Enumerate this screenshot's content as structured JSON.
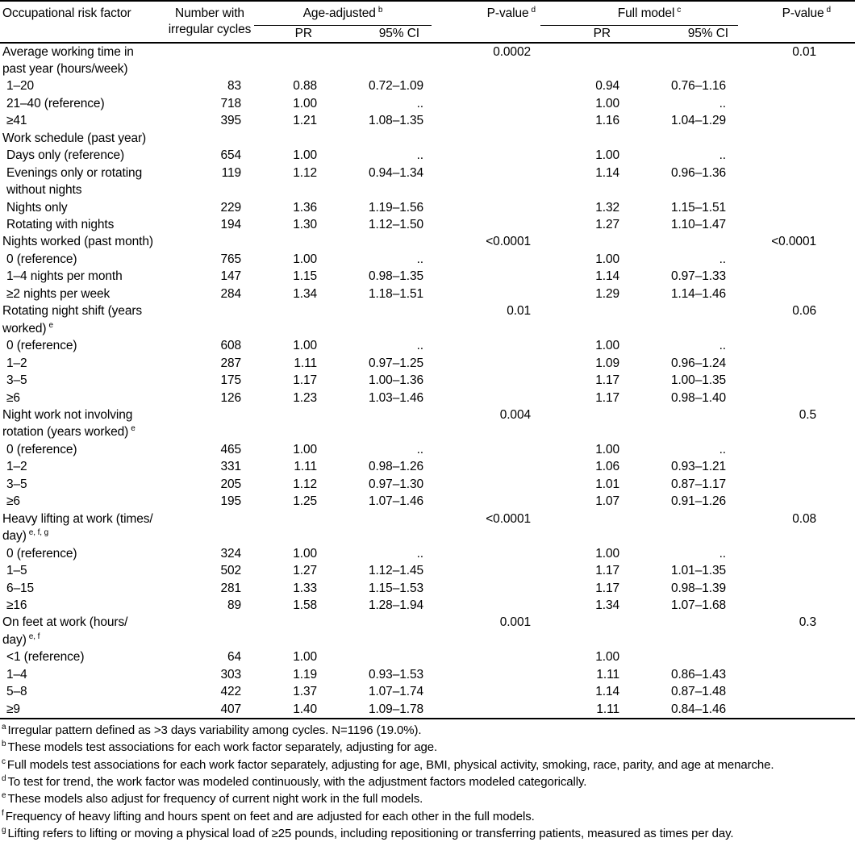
{
  "table": {
    "header": {
      "factor": "Occupational risk factor",
      "n": "Number with\nirregular cycles",
      "age_group": "Age-adjusted",
      "age_sup": "b",
      "full_group": "Full model",
      "full_sup": "c",
      "pr": "PR",
      "ci": "95% CI",
      "p": "P-value",
      "p_sup": "d"
    },
    "sections": [
      {
        "label": "Average working time in\npast year (hours/week)",
        "sup": "",
        "p_age": "0.0002",
        "p_full": "0.01",
        "rows": [
          {
            "label": "1–20",
            "n": "83",
            "pr1": "0.88",
            "ci1": "0.72–1.09",
            "pr2": "0.94",
            "ci2": "0.76–1.16"
          },
          {
            "label": "21–40 (reference)",
            "n": "718",
            "pr1": "1.00",
            "ci1": "..",
            "pr2": "1.00",
            "ci2": ".."
          },
          {
            "label": "≥41",
            "n": "395",
            "pr1": "1.21",
            "ci1": "1.08–1.35",
            "pr2": "1.16",
            "ci2": "1.04–1.29"
          }
        ]
      },
      {
        "label": "Work schedule (past year)",
        "sup": "",
        "p_age": "",
        "p_full": "",
        "rows": [
          {
            "label": "Days only (reference)",
            "n": "654",
            "pr1": "1.00",
            "ci1": "..",
            "pr2": "1.00",
            "ci2": ".."
          },
          {
            "label": "Evenings only or rotating\nwithout nights",
            "n": "119",
            "pr1": "1.12",
            "ci1": "0.94–1.34",
            "pr2": "1.14",
            "ci2": "0.96–1.36"
          },
          {
            "label": "Nights only",
            "n": "229",
            "pr1": "1.36",
            "ci1": "1.19–1.56",
            "pr2": "1.32",
            "ci2": "1.15–1.51"
          },
          {
            "label": "Rotating with nights",
            "n": "194",
            "pr1": "1.30",
            "ci1": "1.12–1.50",
            "pr2": "1.27",
            "ci2": "1.10–1.47"
          }
        ]
      },
      {
        "label": "Nights worked (past month)",
        "sup": "",
        "p_age": "<0.0001",
        "p_full": "<0.0001",
        "rows": [
          {
            "label": "0 (reference)",
            "n": "765",
            "pr1": "1.00",
            "ci1": "..",
            "pr2": "1.00",
            "ci2": ".."
          },
          {
            "label": "1–4 nights per month",
            "n": "147",
            "pr1": "1.15",
            "ci1": "0.98–1.35",
            "pr2": "1.14",
            "ci2": "0.97–1.33"
          },
          {
            "label": "≥2 nights per week",
            "n": "284",
            "pr1": "1.34",
            "ci1": "1.18–1.51",
            "pr2": "1.29",
            "ci2": "1.14–1.46"
          }
        ]
      },
      {
        "label": "Rotating night shift (years\nworked)",
        "sup": "e",
        "p_age": "0.01",
        "p_full": "0.06",
        "rows": [
          {
            "label": "0 (reference)",
            "n": "608",
            "pr1": "1.00",
            "ci1": "..",
            "pr2": "1.00",
            "ci2": ".."
          },
          {
            "label": "1–2",
            "n": "287",
            "pr1": "1.11",
            "ci1": "0.97–1.25",
            "pr2": "1.09",
            "ci2": "0.96–1.24"
          },
          {
            "label": "3–5",
            "n": "175",
            "pr1": "1.17",
            "ci1": "1.00–1.36",
            "pr2": "1.17",
            "ci2": "1.00–1.35"
          },
          {
            "label": "≥6",
            "n": "126",
            "pr1": "1.23",
            "ci1": "1.03–1.46",
            "pr2": "1.17",
            "ci2": "0.98–1.40"
          }
        ]
      },
      {
        "label": "Night work not involving\nrotation (years worked)",
        "sup": "e",
        "p_age": "0.004",
        "p_full": "0.5",
        "rows": [
          {
            "label": "0 (reference)",
            "n": "465",
            "pr1": "1.00",
            "ci1": "..",
            "pr2": "1.00",
            "ci2": ".."
          },
          {
            "label": "1–2",
            "n": "331",
            "pr1": "1.11",
            "ci1": "0.98–1.26",
            "pr2": "1.06",
            "ci2": "0.93–1.21"
          },
          {
            "label": "3–5",
            "n": "205",
            "pr1": "1.12",
            "ci1": "0.97–1.30",
            "pr2": "1.01",
            "ci2": "0.87–1.17"
          },
          {
            "label": "≥6",
            "n": "195",
            "pr1": "1.25",
            "ci1": "1.07–1.46",
            "pr2": "1.07",
            "ci2": "0.91–1.26"
          }
        ]
      },
      {
        "label": "Heavy lifting at work (times/\nday)",
        "sup": "e, f, g",
        "p_age": "<0.0001",
        "p_full": "0.08",
        "rows": [
          {
            "label": "0 (reference)",
            "n": "324",
            "pr1": "1.00",
            "ci1": "..",
            "pr2": "1.00",
            "ci2": ".."
          },
          {
            "label": "1–5",
            "n": "502",
            "pr1": "1.27",
            "ci1": "1.12–1.45",
            "pr2": "1.17",
            "ci2": "1.01–1.35"
          },
          {
            "label": "6–15",
            "n": "281",
            "pr1": "1.33",
            "ci1": "1.15–1.53",
            "pr2": "1.17",
            "ci2": "0.98–1.39"
          },
          {
            "label": "≥16",
            "n": "89",
            "pr1": "1.58",
            "ci1": "1.28–1.94",
            "pr2": "1.34",
            "ci2": "1.07–1.68"
          }
        ]
      },
      {
        "label": "On feet at work (hours/\nday)",
        "sup": "e, f",
        "p_age": "0.001",
        "p_full": "0.3",
        "rows": [
          {
            "label": "<1 (reference)",
            "n": "64",
            "pr1": "1.00",
            "ci1": "",
            "pr2": "1.00",
            "ci2": ""
          },
          {
            "label": "1–4",
            "n": "303",
            "pr1": "1.19",
            "ci1": "0.93–1.53",
            "pr2": "1.11",
            "ci2": "0.86–1.43"
          },
          {
            "label": "5–8",
            "n": "422",
            "pr1": "1.37",
            "ci1": "1.07–1.74",
            "pr2": "1.14",
            "ci2": "0.87–1.48"
          },
          {
            "label": "≥9",
            "n": "407",
            "pr1": "1.40",
            "ci1": "1.09–1.78",
            "pr2": "1.11",
            "ci2": "0.84–1.46"
          }
        ]
      }
    ],
    "footnotes": [
      {
        "sup": "a",
        "text": "Irregular pattern defined as >3 days variability among cycles. N=1196 (19.0%)."
      },
      {
        "sup": "b",
        "text": "These models test associations for each work factor separately, adjusting for age."
      },
      {
        "sup": "c",
        "text": "Full models test associations for each work factor separately, adjusting for age, BMI, physical activity, smoking, race, parity, and age at menarche."
      },
      {
        "sup": "d",
        "text": "To test for trend, the work factor was modeled continuously, with the adjustment factors modeled categorically."
      },
      {
        "sup": "e",
        "text": "These models also adjust for frequency of current night work in the full models."
      },
      {
        "sup": "f",
        "text": "Frequency of heavy lifting and hours spent on feet and are adjusted for each other in the full models."
      },
      {
        "sup": "g",
        "text": "Lifting refers to lifting or moving a physical load of ≥25 pounds, including repositioning or transferring patients, measured as times per day."
      }
    ]
  }
}
